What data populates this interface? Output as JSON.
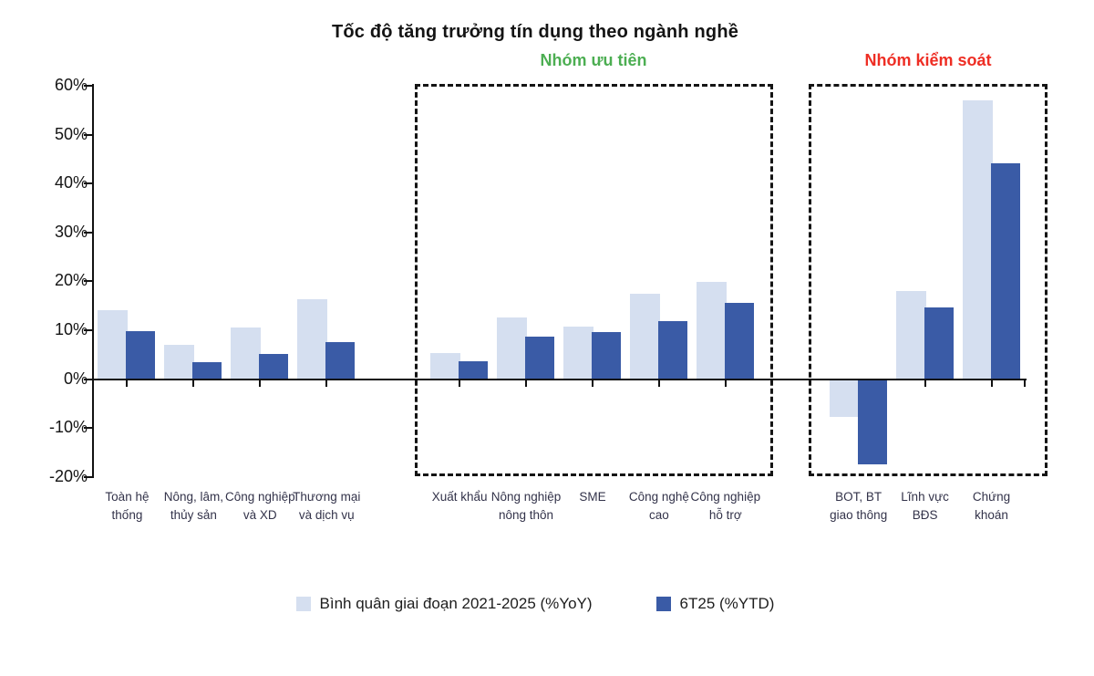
{
  "chart_data": {
    "type": "bar",
    "title": "Tốc độ tăng trưởng tín dụng theo ngành nghề",
    "categories": [
      "Toàn hệ thống",
      "Nông, lâm, thủy sản",
      "Công nghiệp và XD",
      "Thương mại và dịch vụ",
      "Xuất khẩu",
      "Nông nghiệp nông thôn",
      "SME",
      "Công nghệ cao",
      "Công nghiệp hỗ trợ",
      "BOT, BT giao thông",
      "Lĩnh vực BĐS",
      "Chứng khoán"
    ],
    "series": [
      {
        "name": "Bình quân giai đoạn 2021-2025 (%YoY)",
        "color": "#d5dff0",
        "values": [
          14.0,
          7.0,
          10.6,
          16.4,
          5.4,
          12.6,
          10.8,
          17.4,
          19.8,
          -7.5,
          18.0,
          57.0
        ]
      },
      {
        "name": "6T25 (%YTD)",
        "color": "#3a5ba6",
        "values": [
          9.8,
          3.5,
          5.1,
          7.6,
          3.7,
          8.6,
          9.6,
          11.8,
          15.5,
          -17.2,
          14.6,
          44.2
        ]
      }
    ],
    "groups": [
      {
        "label": "",
        "label_color": "",
        "category_indices": [
          0,
          1,
          2,
          3
        ],
        "boxed": false
      },
      {
        "label": "Nhóm ưu tiên",
        "label_color": "#4cae52",
        "category_indices": [
          4,
          5,
          6,
          7,
          8
        ],
        "boxed": true
      },
      {
        "label": "Nhóm kiểm soát",
        "label_color": "#ee2e24",
        "category_indices": [
          9,
          10,
          11
        ],
        "boxed": true
      }
    ],
    "y_axis": {
      "min": -20,
      "max": 60,
      "step": 10,
      "unit": "%",
      "tick_labels": [
        "60%",
        "50%",
        "40%",
        "30%",
        "20%",
        "10%",
        "0%",
        "-10%",
        "-20%"
      ]
    },
    "legend_position": "bottom",
    "grid": false
  }
}
